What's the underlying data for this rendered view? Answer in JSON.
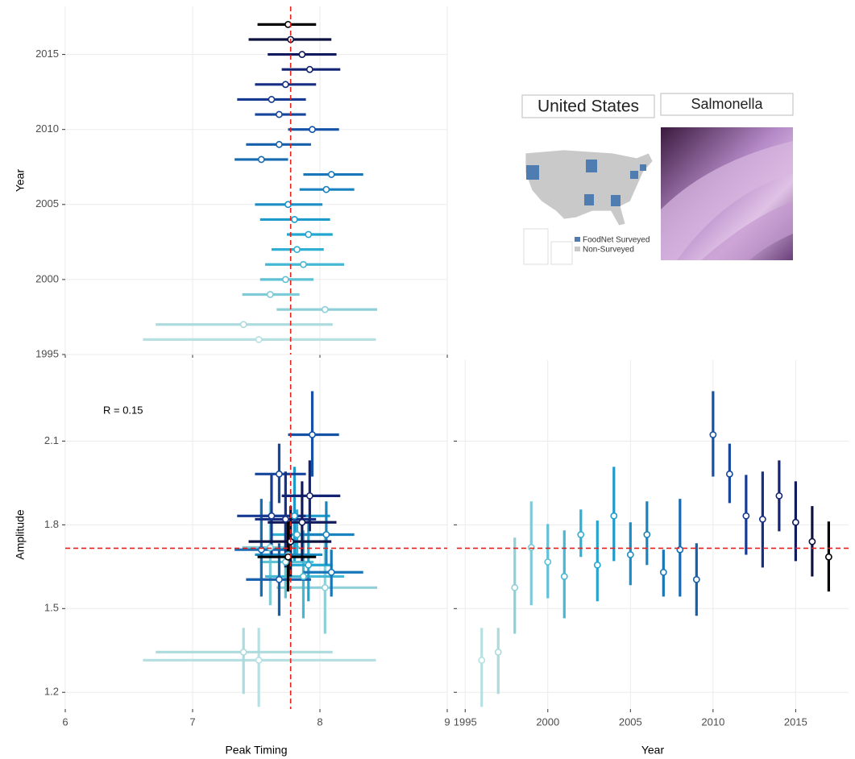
{
  "chart_data": [
    {
      "type": "forest",
      "ylabel": "Year",
      "y": [
        1996,
        1997,
        1998,
        1999,
        2000,
        2001,
        2002,
        2003,
        2004,
        2005,
        2006,
        2007,
        2008,
        2009,
        2010,
        2011,
        2012,
        2013,
        2014,
        2015,
        2016,
        2017
      ],
      "values": [
        7.52,
        7.4,
        8.04,
        7.61,
        7.73,
        7.87,
        7.82,
        7.91,
        7.8,
        7.75,
        8.05,
        8.09,
        7.54,
        7.68,
        7.94,
        7.68,
        7.62,
        7.73,
        7.92,
        7.86,
        7.77,
        7.75
      ],
      "lower": [
        6.61,
        6.71,
        7.66,
        7.39,
        7.53,
        7.57,
        7.62,
        7.74,
        7.53,
        7.49,
        7.84,
        7.87,
        7.33,
        7.42,
        7.75,
        7.49,
        7.35,
        7.49,
        7.7,
        7.59,
        7.44,
        7.51
      ],
      "upper": [
        8.44,
        8.1,
        8.45,
        7.84,
        7.95,
        8.19,
        8.03,
        8.1,
        8.08,
        8.02,
        8.27,
        8.34,
        7.75,
        7.93,
        8.15,
        7.89,
        7.89,
        7.97,
        8.16,
        8.13,
        8.09,
        7.97
      ],
      "colors": [
        "#b7e0e2",
        "#acdbde",
        "#8fd0d8",
        "#7ecad6",
        "#5ec1d4",
        "#45b8d3",
        "#2fb0d2",
        "#22a6cf",
        "#1d9bcb",
        "#1b8fc5",
        "#1a83bf",
        "#1877b8",
        "#166bb1",
        "#165fab",
        "#1552a5",
        "#16469b",
        "#163a91",
        "#162f85",
        "#142474",
        "#111a5e",
        "#0c1240",
        "#000000"
      ],
      "xlim": [
        6,
        9
      ],
      "xticks": [
        6,
        7,
        8,
        9
      ],
      "show_xtick_labels": false,
      "ylim": [
        1995,
        2018.2
      ],
      "yticks": [
        1995,
        2000,
        2005,
        2010,
        2015
      ],
      "reference_x": 7.77,
      "grid": true
    },
    {
      "type": "cross",
      "annotation": "R =  0.15",
      "xlabel": "Peak Timing",
      "ylabel": "Amplitude",
      "x": [
        7.52,
        7.4,
        8.04,
        7.61,
        7.73,
        7.87,
        7.82,
        7.91,
        7.8,
        7.75,
        8.05,
        8.09,
        7.54,
        7.68,
        7.94,
        7.68,
        7.62,
        7.73,
        7.92,
        7.86,
        7.77,
        7.75
      ],
      "x_lower": [
        6.61,
        6.71,
        7.66,
        7.39,
        7.53,
        7.57,
        7.62,
        7.74,
        7.53,
        7.49,
        7.84,
        7.87,
        7.33,
        7.42,
        7.75,
        7.49,
        7.35,
        7.49,
        7.7,
        7.59,
        7.44,
        7.51
      ],
      "x_upper": [
        8.44,
        8.1,
        8.45,
        7.84,
        7.95,
        8.19,
        8.03,
        8.1,
        8.08,
        8.02,
        8.27,
        8.34,
        7.75,
        7.93,
        8.15,
        7.89,
        7.89,
        7.97,
        8.16,
        8.13,
        8.09,
        7.97
      ],
      "values": [
        1.315,
        1.344,
        1.575,
        1.719,
        1.667,
        1.615,
        1.765,
        1.656,
        1.832,
        1.693,
        1.765,
        1.63,
        1.711,
        1.604,
        2.123,
        1.982,
        1.832,
        1.82,
        1.904,
        1.809,
        1.74,
        1.685
      ],
      "lower": [
        1.148,
        1.194,
        1.41,
        1.512,
        1.537,
        1.465,
        1.685,
        1.526,
        1.67,
        1.584,
        1.656,
        1.543,
        1.543,
        1.474,
        1.973,
        1.878,
        1.693,
        1.647,
        1.777,
        1.67,
        1.615,
        1.561
      ],
      "upper": [
        1.431,
        1.431,
        1.754,
        1.884,
        1.803,
        1.78,
        1.855,
        1.815,
        2.008,
        1.809,
        1.884,
        1.711,
        1.893,
        1.734,
        2.279,
        2.091,
        1.979,
        1.991,
        2.031,
        1.956,
        1.867,
        1.812
      ],
      "colors": [
        "#b7e0e2",
        "#acdbde",
        "#8fd0d8",
        "#7ecad6",
        "#5ec1d4",
        "#45b8d3",
        "#2fb0d2",
        "#22a6cf",
        "#1d9bcb",
        "#1b8fc5",
        "#1a83bf",
        "#1877b8",
        "#166bb1",
        "#165fab",
        "#1552a5",
        "#16469b",
        "#163a91",
        "#162f85",
        "#142474",
        "#111a5e",
        "#0c1240",
        "#000000"
      ],
      "xlim": [
        6,
        9
      ],
      "xticks": [
        6,
        7,
        8,
        9
      ],
      "ylim": [
        1.14,
        2.39
      ],
      "yticks": [
        1.2,
        1.5,
        1.8,
        2.1
      ],
      "reference_x": 7.77,
      "reference_y": 1.716,
      "grid": true
    },
    {
      "type": "errorbar",
      "xlabel": "Year",
      "x": [
        1996,
        1997,
        1998,
        1999,
        2000,
        2001,
        2002,
        2003,
        2004,
        2005,
        2006,
        2007,
        2008,
        2009,
        2010,
        2011,
        2012,
        2013,
        2014,
        2015,
        2016,
        2017
      ],
      "values": [
        1.315,
        1.344,
        1.575,
        1.719,
        1.667,
        1.615,
        1.765,
        1.656,
        1.832,
        1.693,
        1.765,
        1.63,
        1.711,
        1.604,
        2.123,
        1.982,
        1.832,
        1.82,
        1.904,
        1.809,
        1.74,
        1.685
      ],
      "lower": [
        1.148,
        1.194,
        1.41,
        1.512,
        1.537,
        1.465,
        1.685,
        1.526,
        1.67,
        1.584,
        1.656,
        1.543,
        1.543,
        1.474,
        1.973,
        1.878,
        1.693,
        1.647,
        1.777,
        1.67,
        1.615,
        1.561
      ],
      "upper": [
        1.431,
        1.431,
        1.754,
        1.884,
        1.803,
        1.78,
        1.855,
        1.815,
        2.008,
        1.809,
        1.884,
        1.711,
        1.893,
        1.734,
        2.279,
        2.091,
        1.979,
        1.991,
        2.031,
        1.956,
        1.867,
        1.812
      ],
      "colors": [
        "#b7e0e2",
        "#acdbde",
        "#8fd0d8",
        "#7ecad6",
        "#5ec1d4",
        "#45b8d3",
        "#2fb0d2",
        "#22a6cf",
        "#1d9bcb",
        "#1b8fc5",
        "#1a83bf",
        "#1877b8",
        "#166bb1",
        "#165fab",
        "#1552a5",
        "#16469b",
        "#163a91",
        "#162f85",
        "#142474",
        "#111a5e",
        "#0c1240",
        "#000000"
      ],
      "xlim": [
        1994.5,
        2018.2
      ],
      "xticks": [
        1995,
        2000,
        2005,
        2010,
        2015
      ],
      "ylim": [
        1.14,
        2.39
      ],
      "yticks": [
        1.2,
        1.5,
        1.8,
        2.1
      ],
      "show_ytick_labels": false,
      "reference_y": 1.716,
      "grid": true
    }
  ],
  "inset": {
    "map_title": "United States",
    "image_title": "Salmonella",
    "legend": [
      "FoodNet Surveyed",
      "Non-Surveyed"
    ]
  }
}
